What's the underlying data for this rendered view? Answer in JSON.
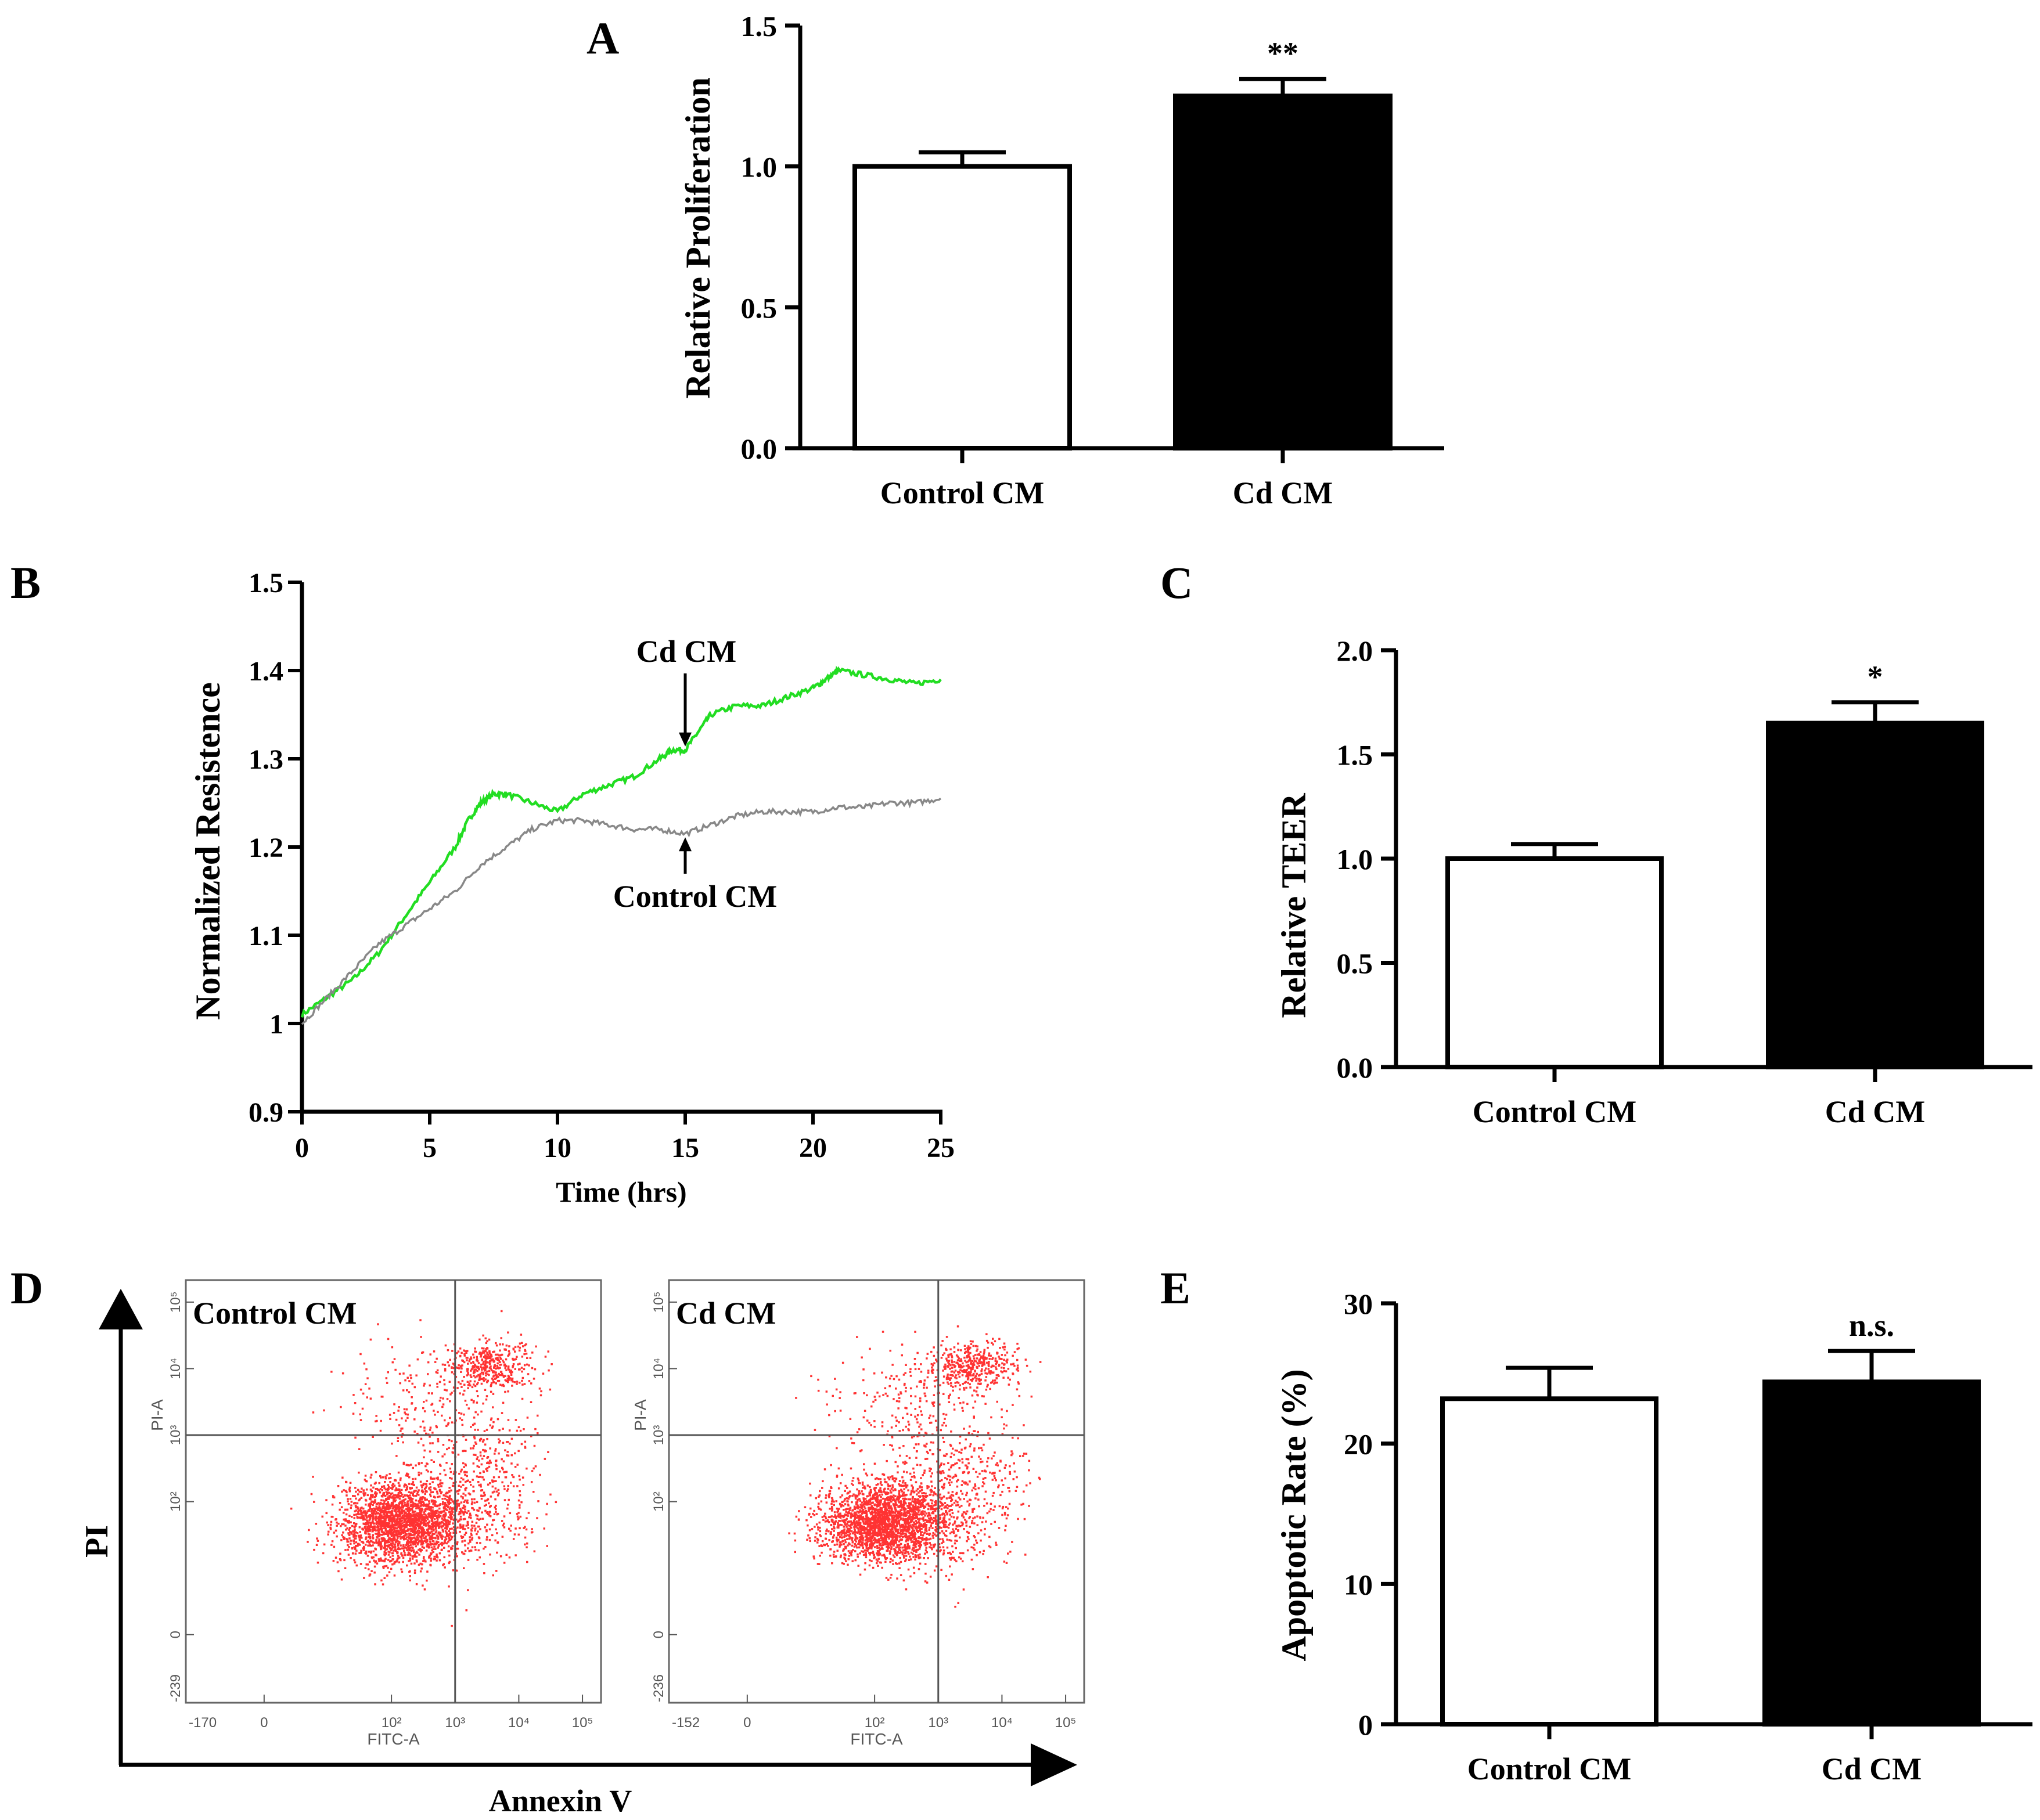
{
  "chart_data": [
    {
      "panel": "A",
      "type": "bar",
      "categories": [
        "Control CM",
        "Cd CM"
      ],
      "values": [
        1.0,
        1.25
      ],
      "errors": [
        0.05,
        0.06
      ],
      "bar_colors": [
        "#ffffff",
        "#000000"
      ],
      "significance": [
        "",
        "**"
      ],
      "ylabel": "Relative Proliferation",
      "ylim": [
        0,
        1.5
      ],
      "yticks": [
        "0.0",
        "0.5",
        "1.0",
        "1.5"
      ]
    },
    {
      "panel": "B",
      "type": "line",
      "xlabel": "Time (hrs)",
      "ylabel": "Normalized Resistence",
      "xlim": [
        0,
        25
      ],
      "ylim": [
        0.9,
        1.5
      ],
      "xticks": [
        "0",
        "5",
        "10",
        "15",
        "20",
        "25"
      ],
      "yticks": [
        "0.9",
        "1",
        "1.1",
        "1.2",
        "1.3",
        "1.4",
        "1.5"
      ],
      "series": [
        {
          "name": "Cd CM",
          "color": "#22dd22",
          "x": [
            0,
            1,
            2,
            3,
            4,
            5,
            6,
            6.5,
            7,
            7.5,
            8,
            9,
            10,
            11,
            12,
            13,
            14,
            14.5,
            15,
            15.5,
            16,
            17,
            18,
            19,
            20,
            20.5,
            21,
            22,
            23,
            24,
            25
          ],
          "y": [
            1.01,
            1.03,
            1.05,
            1.08,
            1.12,
            1.16,
            1.2,
            1.23,
            1.25,
            1.26,
            1.26,
            1.25,
            1.24,
            1.26,
            1.27,
            1.28,
            1.3,
            1.31,
            1.31,
            1.33,
            1.35,
            1.36,
            1.36,
            1.37,
            1.38,
            1.39,
            1.4,
            1.395,
            1.39,
            1.385,
            1.39
          ]
        },
        {
          "name": "Control CM",
          "color": "#888888",
          "x": [
            0,
            1,
            2,
            3,
            4,
            5,
            6,
            7,
            8,
            9,
            10,
            11,
            12,
            13,
            14,
            15,
            16,
            17,
            18,
            19,
            20,
            21,
            22,
            23,
            24,
            25
          ],
          "y": [
            1.0,
            1.03,
            1.06,
            1.09,
            1.11,
            1.13,
            1.15,
            1.18,
            1.2,
            1.22,
            1.23,
            1.23,
            1.225,
            1.22,
            1.22,
            1.215,
            1.225,
            1.235,
            1.24,
            1.24,
            1.24,
            1.245,
            1.245,
            1.25,
            1.25,
            1.255
          ]
        }
      ],
      "annotations": [
        {
          "text": "Cd CM",
          "x": 15,
          "y": 1.31
        },
        {
          "text": "Control CM",
          "x": 15,
          "y": 1.215
        }
      ]
    },
    {
      "panel": "C",
      "type": "bar",
      "categories": [
        "Control CM",
        "Cd CM"
      ],
      "values": [
        1.0,
        1.65
      ],
      "errors": [
        0.07,
        0.1
      ],
      "bar_colors": [
        "#ffffff",
        "#000000"
      ],
      "significance": [
        "",
        "*"
      ],
      "ylabel": "Relative TEER",
      "ylim": [
        0,
        2.0
      ],
      "yticks": [
        "0.0",
        "0.5",
        "1.0",
        "1.5",
        "2.0"
      ]
    },
    {
      "panel": "D",
      "type": "scatter",
      "xlabel": "Annexin V",
      "ylabel": "PI",
      "dot_color": "#ff3333",
      "plots": [
        {
          "title": "Control CM",
          "x_axis_label": "FITC-A",
          "y_axis_label": "PI-A",
          "x_min_label": "-170",
          "y_min_label": "-239",
          "clusters": [
            {
              "cx": 2.15,
              "cy": 1.7,
              "sx": 0.5,
              "sy": 0.3,
              "n": 2400
            },
            {
              "cx": 3.55,
              "cy": 4.05,
              "sx": 0.35,
              "sy": 0.18,
              "n": 420
            },
            {
              "cx": 3.3,
              "cy": 2.2,
              "sx": 0.5,
              "sy": 0.55,
              "n": 500
            },
            {
              "cx": 2.6,
              "cy": 3.5,
              "sx": 0.7,
              "sy": 0.45,
              "n": 220
            }
          ]
        },
        {
          "title": "Cd CM",
          "x_axis_label": "FITC-A",
          "y_axis_label": "PI-A",
          "x_min_label": "-152",
          "y_min_label": "-236",
          "clusters": [
            {
              "cx": 2.15,
              "cy": 1.7,
              "sx": 0.5,
              "sy": 0.3,
              "n": 2400
            },
            {
              "cx": 3.55,
              "cy": 4.05,
              "sx": 0.35,
              "sy": 0.18,
              "n": 420
            },
            {
              "cx": 3.3,
              "cy": 2.2,
              "sx": 0.5,
              "sy": 0.55,
              "n": 500
            },
            {
              "cx": 2.6,
              "cy": 3.5,
              "sx": 0.7,
              "sy": 0.45,
              "n": 220
            }
          ]
        }
      ],
      "xtick_labels": [
        "0",
        "10²",
        "10³",
        "10⁴",
        "10⁵"
      ],
      "ytick_labels": [
        "0",
        "10²",
        "10³",
        "10⁴",
        "10⁵"
      ]
    },
    {
      "panel": "E",
      "type": "bar",
      "categories": [
        "Control CM",
        "Cd CM"
      ],
      "values": [
        23.2,
        24.4
      ],
      "errors": [
        2.2,
        2.2
      ],
      "bar_colors": [
        "#ffffff",
        "#000000"
      ],
      "significance": [
        "",
        "n.s."
      ],
      "ylabel": "Apoptotic Rate (%)",
      "ylim": [
        0,
        30
      ],
      "yticks": [
        "0",
        "10",
        "20",
        "30"
      ]
    }
  ],
  "panel_labels": [
    "A",
    "B",
    "C",
    "D",
    "E"
  ]
}
